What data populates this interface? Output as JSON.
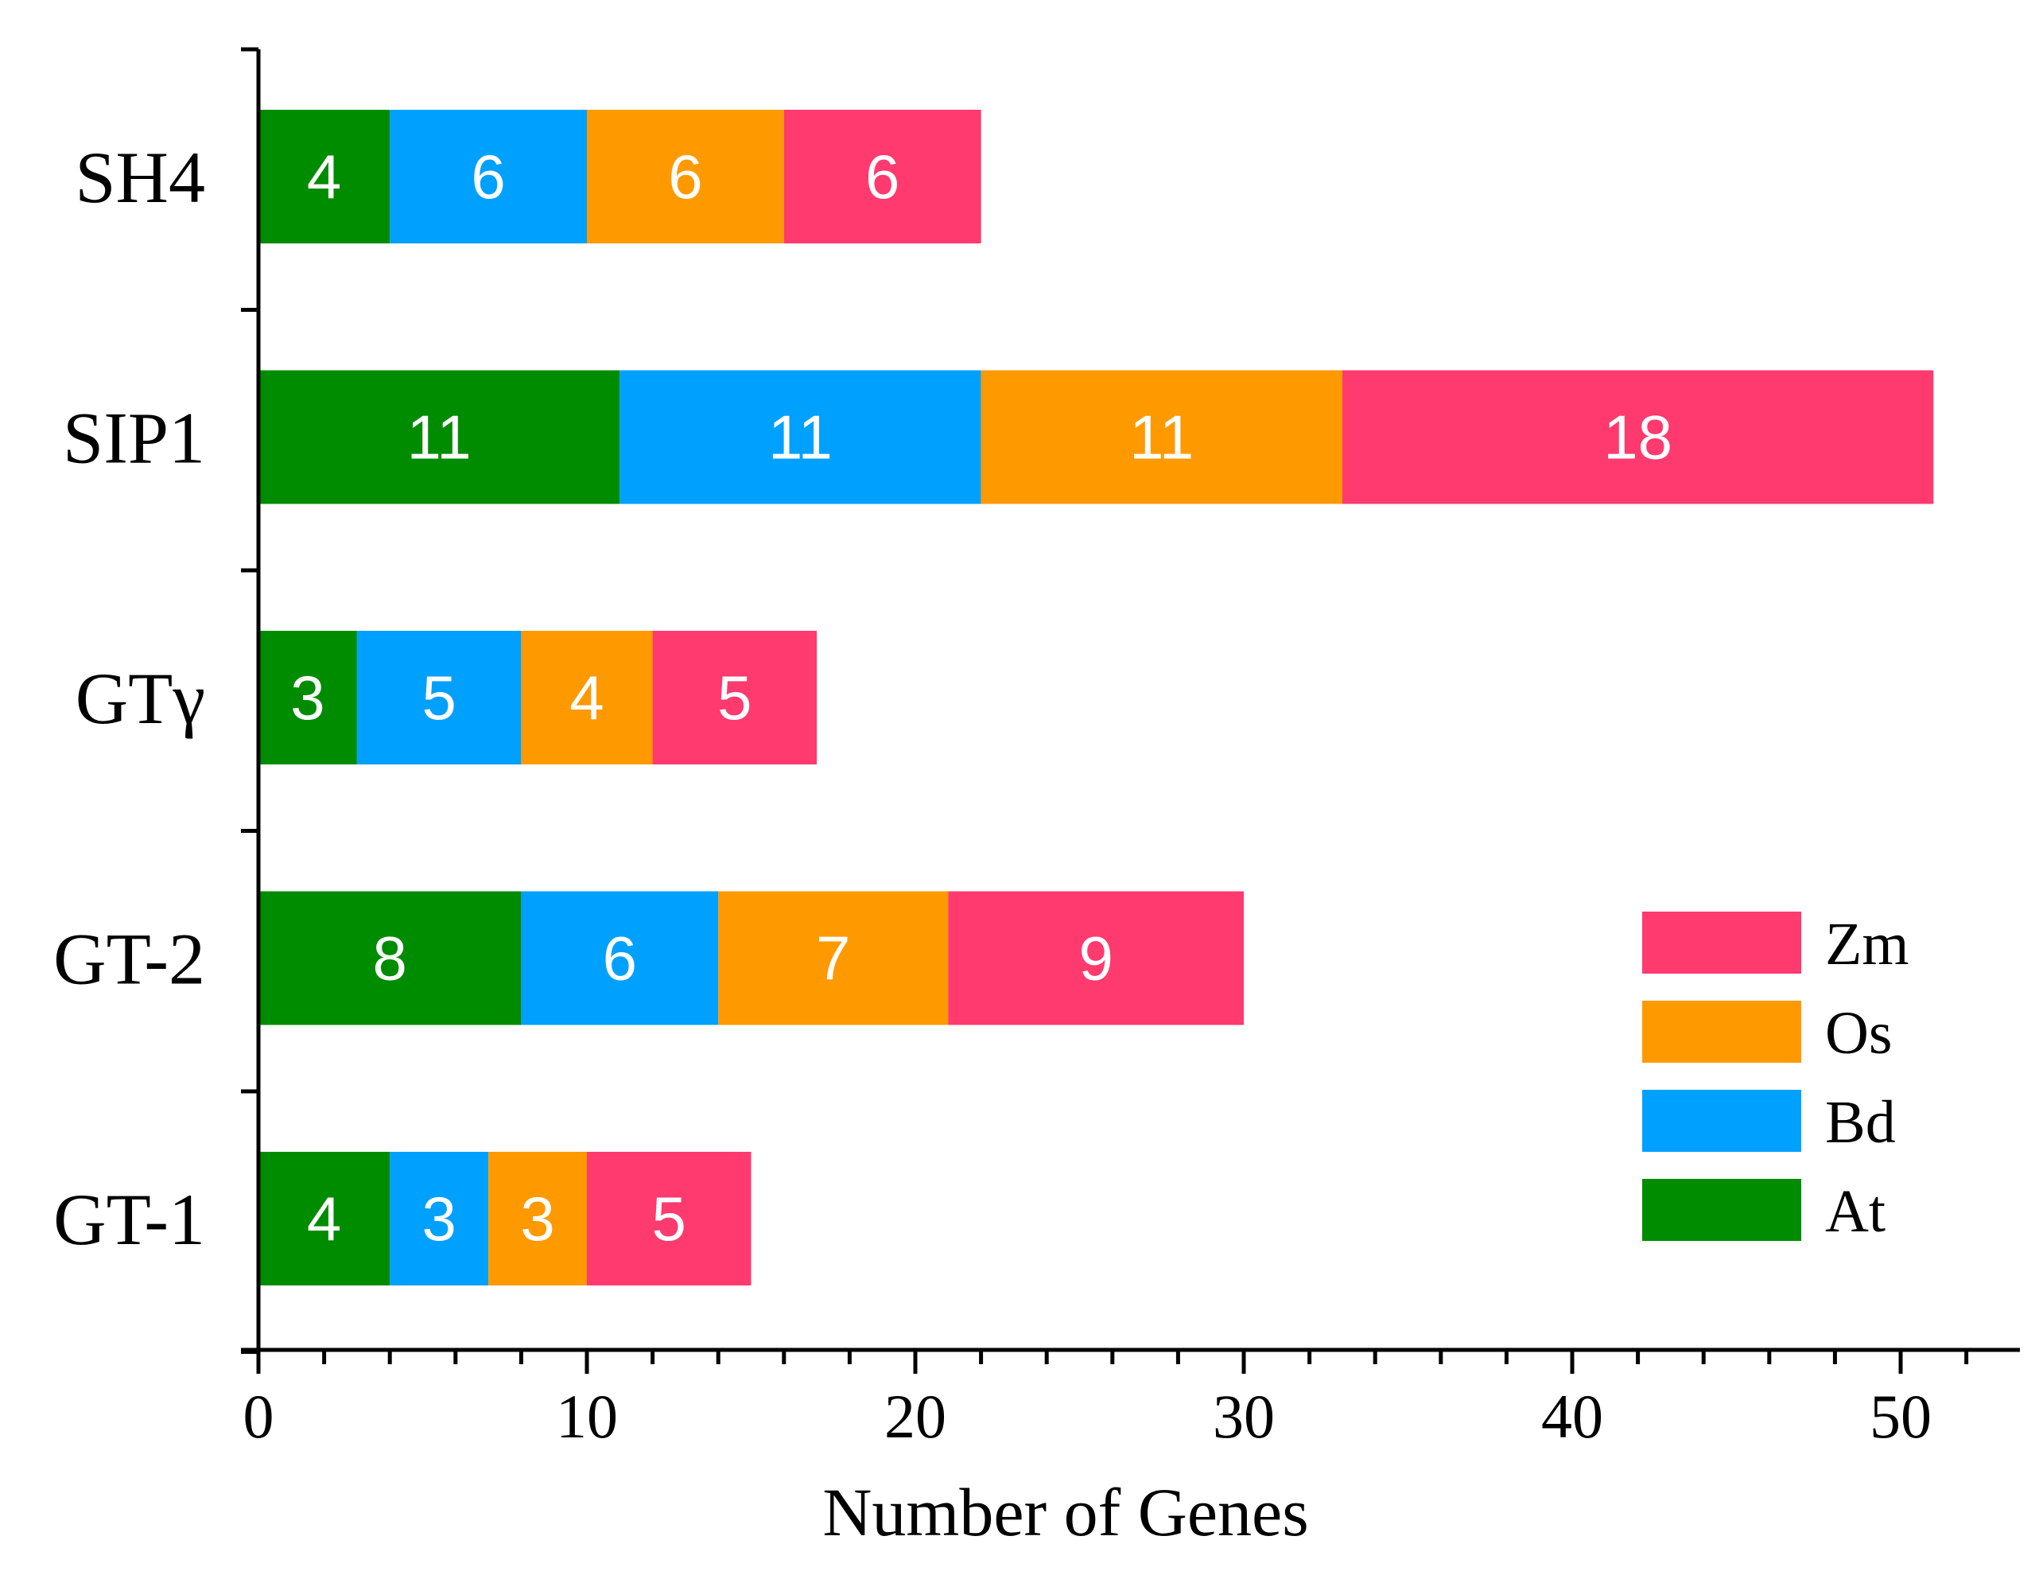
{
  "chart_data": {
    "type": "bar",
    "orientation": "horizontal",
    "stacked": true,
    "title": "",
    "xlabel": "Number of Genes",
    "ylabel": "",
    "xlim": [
      0,
      54
    ],
    "x_ticks": [
      0,
      10,
      20,
      30,
      40,
      50
    ],
    "x_tick_labels": [
      "0",
      "10",
      "20",
      "30",
      "40",
      "50"
    ],
    "categories": [
      "SH4",
      "SIP1",
      "GTγ",
      "GT-2",
      "GT-1"
    ],
    "series": [
      {
        "name": "At",
        "color": "#008c00",
        "values": [
          4,
          11,
          3,
          8,
          4
        ]
      },
      {
        "name": "Bd",
        "color": "#00a0ff",
        "values": [
          6,
          11,
          5,
          6,
          3
        ]
      },
      {
        "name": "Os",
        "color": "#ff9900",
        "values": [
          6,
          11,
          4,
          7,
          3
        ]
      },
      {
        "name": "Zm",
        "color": "#ff3a6e",
        "values": [
          6,
          18,
          5,
          9,
          5
        ]
      }
    ],
    "legend": {
      "position": "bottom-right",
      "order": [
        "Zm",
        "Os",
        "Bd",
        "At"
      ]
    }
  }
}
